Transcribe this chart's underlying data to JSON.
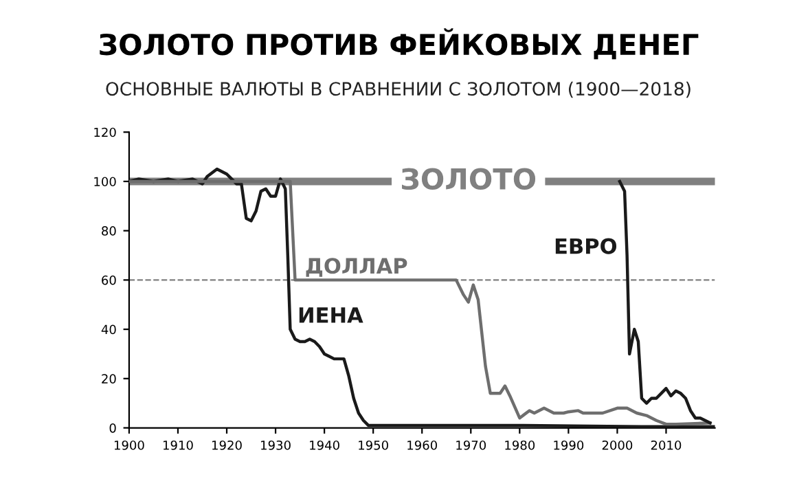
{
  "chart_data": {
    "type": "line",
    "title": "ЗОЛОТО ПРОТИВ ФЕЙКОВЫХ ДЕНЕГ",
    "subtitle": "ОСНОВНЫЕ ВАЛЮТЫ В СРАВНЕНИИ С ЗОЛОТОМ (1900—2018)",
    "xlim": [
      1900,
      2020
    ],
    "xticks": [
      1900,
      1910,
      1920,
      1930,
      1940,
      1950,
      1960,
      1970,
      1980,
      1990,
      2000,
      2010
    ],
    "ylim": [
      0,
      120
    ],
    "yticks": [
      0,
      20,
      40,
      60,
      80,
      100,
      120
    ],
    "grid": false,
    "legend": false,
    "marker": "none",
    "line_style": "solid",
    "ref_lines": [
      {
        "axis": "y",
        "value": 60,
        "color": "#808080",
        "line_style": "dashed"
      }
    ],
    "series": [
      {
        "name": "ЗОЛОТО",
        "color": "#808080",
        "x": [
          1900,
          1953,
          1970,
          1986,
          2020
        ],
        "values": [
          100,
          100,
          null,
          100,
          100
        ]
      },
      {
        "name": "ИЕНА",
        "color": "#1a1a1a",
        "x": [
          1900,
          1902,
          1905,
          1908,
          1910,
          1913,
          1915,
          1916,
          1918,
          1920,
          1921,
          1922,
          1923,
          1924,
          1925,
          1926,
          1927,
          1928,
          1929,
          1930,
          1931,
          1932,
          1932.5,
          1933,
          1934,
          1935,
          1936,
          1937,
          1938,
          1939,
          1940,
          1941,
          1942,
          1944,
          1945,
          1946,
          1947,
          1948,
          1949,
          1980,
          2005,
          2020
        ],
        "values": [
          100,
          101,
          100,
          101,
          100,
          101,
          99,
          102,
          105,
          103,
          101,
          99,
          99,
          85,
          84,
          88,
          96,
          97,
          94,
          94,
          101,
          97,
          70,
          40,
          36,
          35,
          35,
          36,
          35,
          33,
          30,
          29,
          28,
          28,
          21,
          12,
          6,
          3,
          1,
          1,
          0.5,
          0.5
        ]
      },
      {
        "name": "ДОЛЛАР",
        "color": "#6e6e6e",
        "x": [
          1900,
          1933,
          1934,
          1967,
          1968.5,
          1969.5,
          1970.5,
          1971.5,
          1973,
          1974,
          1975,
          1976,
          1977,
          1978,
          1980,
          1982,
          1983,
          1985,
          1987,
          1989,
          1990,
          1992,
          1993,
          1997,
          2000,
          2002,
          2004,
          2006,
          2008,
          2010,
          2012,
          2019
        ],
        "values": [
          100,
          100,
          60,
          60,
          54,
          51,
          58,
          52,
          25,
          14,
          14,
          14,
          17,
          13,
          4,
          7,
          6,
          8,
          6,
          6,
          6.5,
          7,
          6,
          6,
          8,
          8,
          6,
          5,
          3,
          1.5,
          1.5,
          2
        ]
      },
      {
        "name": "ЕВРО",
        "color": "#1a1a1a",
        "x": [
          2000.5,
          2001.5,
          2002,
          2002.5,
          2003,
          2003.5,
          2004.3,
          2005,
          2006,
          2007,
          2008,
          2009,
          2010,
          2011,
          2012,
          2013,
          2014,
          2015,
          2016,
          2017,
          2018,
          2019
        ],
        "values": [
          100,
          96,
          70,
          30,
          35,
          40,
          35,
          12,
          10,
          12,
          12,
          14,
          16,
          13,
          15,
          14,
          12,
          7,
          4,
          4,
          3,
          2
        ]
      }
    ]
  }
}
